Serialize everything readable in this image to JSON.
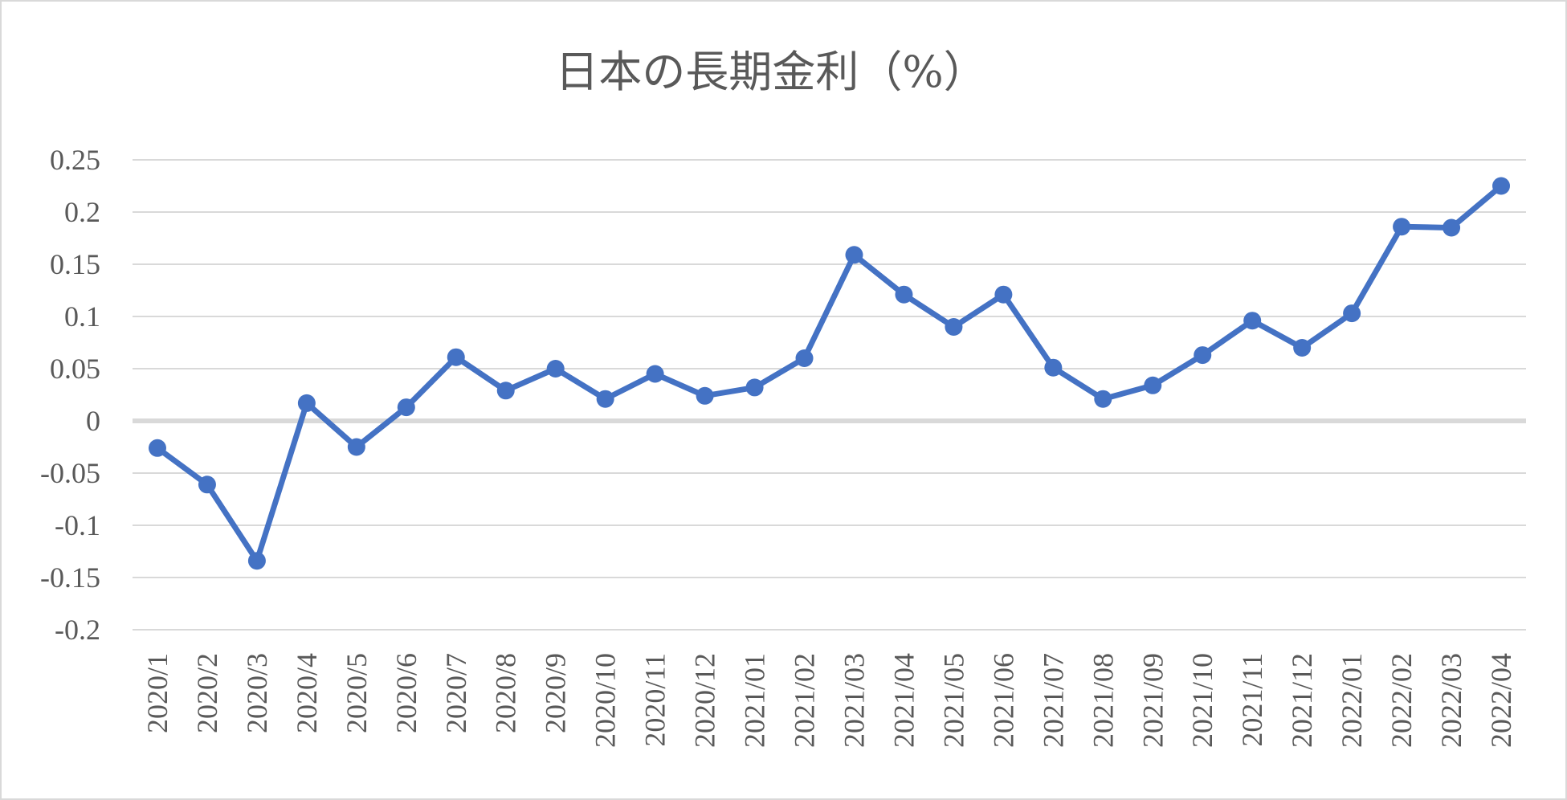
{
  "chart_data": {
    "type": "line",
    "title": "日本の長期金利（%）",
    "xlabel": "",
    "ylabel": "",
    "ylim": [
      -0.2,
      0.25
    ],
    "yticks": [
      "0.25",
      "0.2",
      "0.15",
      "0.1",
      "0.05",
      "0",
      "-0.05",
      "-0.1",
      "-0.15",
      "-0.2"
    ],
    "grid": true,
    "legend": "none",
    "categories": [
      "2020/1",
      "2020/2",
      "2020/3",
      "2020/4",
      "2020/5",
      "2020/6",
      "2020/7",
      "2020/8",
      "2020/9",
      "2020/10",
      "2020/11",
      "2020/12",
      "2021/01",
      "2021/02",
      "2021/03",
      "2021/04",
      "2021/05",
      "2021/06",
      "2021/07",
      "2021/08",
      "2021/09",
      "2021/10",
      "2021/11",
      "2021/12",
      "2022/01",
      "2022/02",
      "2022/03",
      "2022/04"
    ],
    "series": [
      {
        "color": "#4472c4",
        "values": [
          -0.026,
          -0.061,
          -0.134,
          0.017,
          -0.025,
          0.013,
          0.061,
          0.029,
          0.05,
          0.021,
          0.045,
          0.024,
          0.032,
          0.06,
          0.159,
          0.121,
          0.09,
          0.121,
          0.051,
          0.021,
          0.034,
          0.063,
          0.096,
          0.07,
          0.103,
          0.186,
          0.185,
          0.225
        ]
      }
    ]
  }
}
